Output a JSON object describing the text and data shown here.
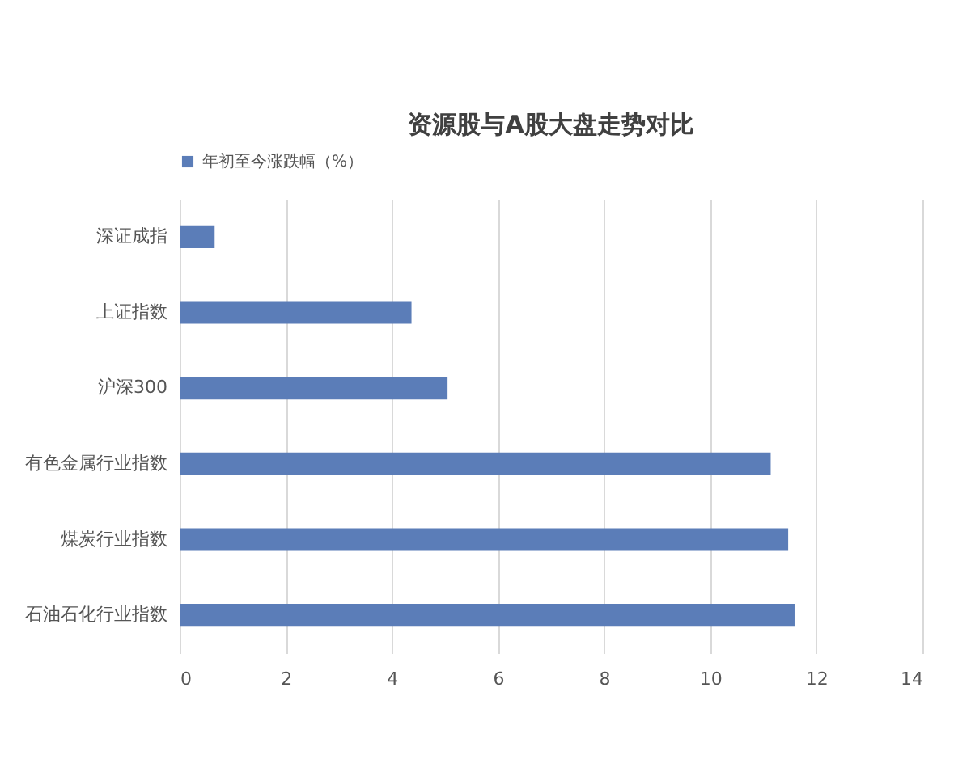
{
  "chart_data": {
    "type": "bar",
    "orientation": "horizontal",
    "title": "资源股与A股大盘走势对比",
    "categories": [
      "深证成指",
      "上证指数",
      "沪深300",
      "有色金属行业指数",
      "煤炭行业指数",
      "石油石化行业指数"
    ],
    "series": [
      {
        "name": "年初至今涨跌幅（%）",
        "color": "#5b7db8",
        "values": [
          0.66,
          4.37,
          5.05,
          11.14,
          11.47,
          11.59
        ]
      }
    ],
    "xlim": [
      0,
      14
    ],
    "xticks": [
      0,
      2,
      4,
      6,
      8,
      10,
      12,
      14
    ],
    "grid": "x",
    "legend": "top"
  }
}
